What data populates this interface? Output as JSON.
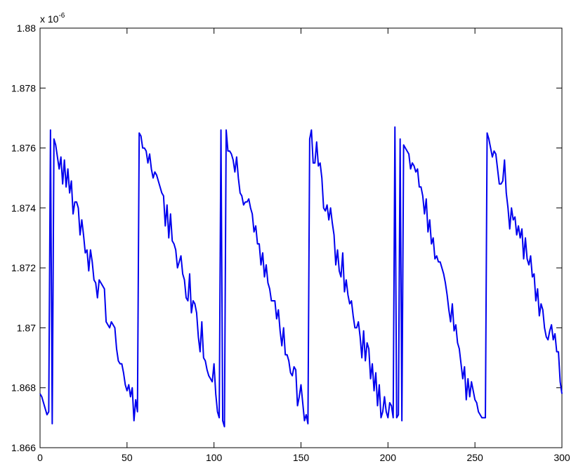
{
  "chart_data": {
    "type": "line",
    "axis_multiplier": {
      "base": "x 10",
      "exponent": "-6"
    },
    "color": "#0000ee",
    "xlim": [
      0,
      300
    ],
    "xticks": [
      0,
      50,
      100,
      150,
      200,
      250,
      300
    ],
    "ylim": [
      1.866,
      1.88
    ],
    "yticks": [
      1.866,
      1.868,
      1.87,
      1.872,
      1.874,
      1.876,
      1.878,
      1.88
    ],
    "grid": false,
    "x": [
      0,
      1,
      2,
      3,
      4,
      5,
      6,
      7,
      8,
      9,
      10,
      11,
      12,
      13,
      14,
      15,
      16,
      17,
      18,
      19,
      20,
      21,
      22,
      23,
      24,
      25,
      26,
      27,
      28,
      29,
      30,
      31,
      32,
      33,
      34,
      35,
      36,
      37,
      38,
      39,
      40,
      41,
      42,
      43,
      44,
      45,
      46,
      47,
      48,
      49,
      50,
      51,
      52,
      53,
      54,
      55,
      56,
      57,
      58,
      59,
      60,
      61,
      62,
      63,
      64,
      65,
      66,
      67,
      68,
      69,
      70,
      71,
      72,
      73,
      74,
      75,
      76,
      77,
      78,
      79,
      80,
      81,
      82,
      83,
      84,
      85,
      86,
      87,
      88,
      89,
      90,
      91,
      92,
      93,
      94,
      95,
      96,
      97,
      98,
      99,
      100,
      101,
      102,
      103,
      104,
      105,
      106,
      107,
      108,
      109,
      110,
      111,
      112,
      113,
      114,
      115,
      116,
      117,
      118,
      119,
      120,
      121,
      122,
      123,
      124,
      125,
      126,
      127,
      128,
      129,
      130,
      131,
      132,
      133,
      134,
      135,
      136,
      137,
      138,
      139,
      140,
      141,
      142,
      143,
      144,
      145,
      146,
      147,
      148,
      149,
      150,
      151,
      152,
      153,
      154,
      155,
      156,
      157,
      158,
      159,
      160,
      161,
      162,
      163,
      164,
      165,
      166,
      167,
      168,
      169,
      170,
      171,
      172,
      173,
      174,
      175,
      176,
      177,
      178,
      179,
      180,
      181,
      182,
      183,
      184,
      185,
      186,
      187,
      188,
      189,
      190,
      191,
      192,
      193,
      194,
      195,
      196,
      197,
      198,
      199,
      200,
      201,
      202,
      203,
      204,
      205,
      206,
      207,
      208,
      209,
      210,
      211,
      212,
      213,
      214,
      215,
      216,
      217,
      218,
      219,
      220,
      221,
      222,
      223,
      224,
      225,
      226,
      227,
      228,
      229,
      230,
      231,
      232,
      233,
      234,
      235,
      236,
      237,
      238,
      239,
      240,
      241,
      242,
      243,
      244,
      245,
      246,
      247,
      248,
      249,
      250,
      251,
      252,
      253,
      254,
      255,
      256,
      257,
      258,
      259,
      260,
      261,
      262,
      263,
      264,
      265,
      266,
      267,
      268,
      269,
      270,
      271,
      272,
      273,
      274,
      275,
      276,
      277,
      278,
      279,
      280,
      281,
      282,
      283,
      284,
      285,
      286,
      287,
      288,
      289,
      290,
      291,
      292,
      293,
      294,
      295,
      296,
      297,
      298,
      299,
      300
    ],
    "values": [
      1.8678,
      1.8677,
      1.8675,
      1.8673,
      1.8671,
      1.8672,
      1.8766,
      1.8668,
      1.8763,
      1.8761,
      1.8757,
      1.8753,
      1.8757,
      1.8748,
      1.8756,
      1.8747,
      1.8753,
      1.8745,
      1.8749,
      1.8738,
      1.8742,
      1.8742,
      1.874,
      1.8731,
      1.8736,
      1.8731,
      1.8725,
      1.8726,
      1.8719,
      1.8726,
      1.8722,
      1.8716,
      1.8715,
      1.871,
      1.8716,
      1.8715,
      1.8714,
      1.8713,
      1.8702,
      1.8701,
      1.87,
      1.8702,
      1.8701,
      1.87,
      1.8693,
      1.8689,
      1.8688,
      1.8688,
      1.8685,
      1.8681,
      1.8679,
      1.8681,
      1.8677,
      1.868,
      1.8669,
      1.8676,
      1.8672,
      1.8765,
      1.8764,
      1.876,
      1.876,
      1.8759,
      1.8755,
      1.8758,
      1.8753,
      1.875,
      1.8752,
      1.8751,
      1.8749,
      1.8747,
      1.8745,
      1.8744,
      1.8734,
      1.8741,
      1.873,
      1.8738,
      1.8729,
      1.8728,
      1.8726,
      1.872,
      1.8722,
      1.8724,
      1.8718,
      1.8716,
      1.871,
      1.8709,
      1.8718,
      1.8705,
      1.8709,
      1.8708,
      1.8705,
      1.8697,
      1.8692,
      1.8702,
      1.869,
      1.8689,
      1.8686,
      1.8684,
      1.8683,
      1.8682,
      1.8688,
      1.8678,
      1.8672,
      1.867,
      1.8766,
      1.8669,
      1.8667,
      1.8766,
      1.8759,
      1.8759,
      1.8758,
      1.8756,
      1.8752,
      1.8757,
      1.875,
      1.8745,
      1.8744,
      1.8741,
      1.8742,
      1.8742,
      1.8743,
      1.874,
      1.8738,
      1.8732,
      1.8734,
      1.8728,
      1.8728,
      1.8721,
      1.8725,
      1.8717,
      1.8721,
      1.8715,
      1.8713,
      1.8709,
      1.8709,
      1.8709,
      1.8703,
      1.8706,
      1.8699,
      1.8694,
      1.87,
      1.8691,
      1.8691,
      1.8689,
      1.8685,
      1.8684,
      1.8687,
      1.8686,
      1.8674,
      1.8677,
      1.8681,
      1.8675,
      1.8669,
      1.8671,
      1.8668,
      1.8763,
      1.8766,
      1.8755,
      1.8755,
      1.8762,
      1.8754,
      1.8755,
      1.875,
      1.874,
      1.8739,
      1.8741,
      1.8736,
      1.874,
      1.8735,
      1.8731,
      1.8721,
      1.8726,
      1.8719,
      1.8717,
      1.8725,
      1.8712,
      1.8716,
      1.8711,
      1.8708,
      1.8709,
      1.8704,
      1.87,
      1.87,
      1.8702,
      1.8697,
      1.869,
      1.8699,
      1.8689,
      1.8695,
      1.8693,
      1.8683,
      1.8688,
      1.8679,
      1.8685,
      1.8674,
      1.8681,
      1.867,
      1.8672,
      1.8677,
      1.8672,
      1.867,
      1.8675,
      1.8674,
      1.867,
      1.8767,
      1.867,
      1.8671,
      1.8763,
      1.8669,
      1.8761,
      1.876,
      1.8759,
      1.8758,
      1.8753,
      1.8755,
      1.8754,
      1.8752,
      1.8753,
      1.8747,
      1.8747,
      1.8744,
      1.8738,
      1.8743,
      1.8732,
      1.8736,
      1.8728,
      1.873,
      1.8723,
      1.8724,
      1.8722,
      1.8722,
      1.872,
      1.8718,
      1.8715,
      1.8711,
      1.8706,
      1.8702,
      1.8708,
      1.8699,
      1.8701,
      1.8695,
      1.8693,
      1.8688,
      1.8683,
      1.8687,
      1.8676,
      1.8683,
      1.8677,
      1.8682,
      1.8679,
      1.8676,
      1.8675,
      1.8672,
      1.8671,
      1.867,
      1.867,
      1.867,
      1.8765,
      1.8763,
      1.876,
      1.8757,
      1.8759,
      1.8758,
      1.8753,
      1.8748,
      1.8748,
      1.8749,
      1.8756,
      1.8745,
      1.874,
      1.8733,
      1.874,
      1.8736,
      1.8737,
      1.8731,
      1.8734,
      1.873,
      1.8733,
      1.8723,
      1.873,
      1.8723,
      1.8721,
      1.8724,
      1.8717,
      1.8718,
      1.8709,
      1.8713,
      1.8704,
      1.8708,
      1.8706,
      1.87,
      1.8697,
      1.8696,
      1.8699,
      1.8701,
      1.8696,
      1.8698,
      1.8692,
      1.8692,
      1.8682,
      1.8678
    ]
  }
}
